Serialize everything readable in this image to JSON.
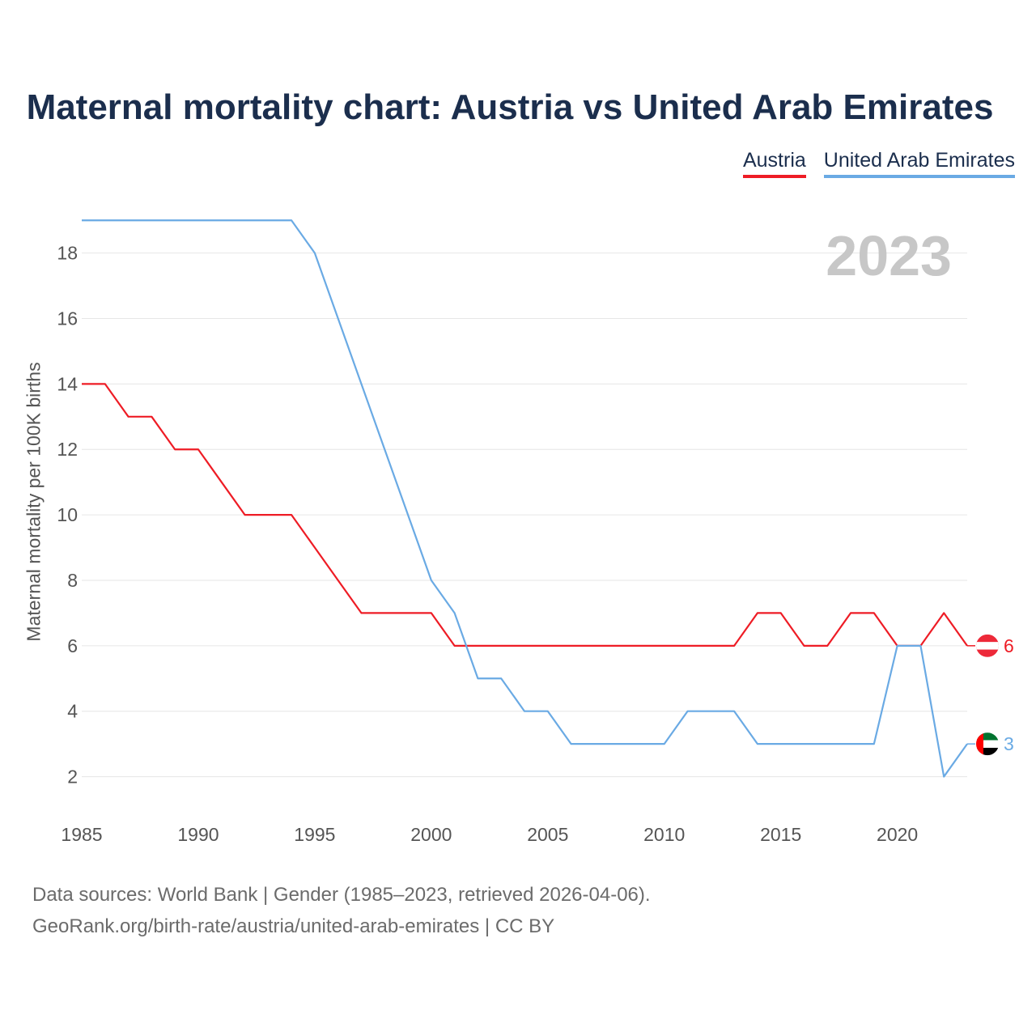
{
  "title": "Maternal mortality chart: Austria vs United Arab Emirates",
  "year_label": "2023",
  "footer": {
    "line1": "Data sources: World Bank | Gender (1985–2023, retrieved 2026-04-06).",
    "line2": "GeoRank.org/birth-rate/austria/united-arab-emirates | CC BY"
  },
  "chart_data": {
    "type": "line",
    "title": "Maternal mortality chart: Austria vs United Arab Emirates",
    "xlabel": "",
    "ylabel": "Maternal mortality per 100K births",
    "xlim": [
      1985,
      2023
    ],
    "ylim": [
      1,
      19.5
    ],
    "x_ticks": [
      "1985",
      "1990",
      "1995",
      "2000",
      "2005",
      "2010",
      "2015",
      "2020"
    ],
    "y_ticks": [
      "2",
      "4",
      "6",
      "8",
      "10",
      "12",
      "14",
      "16",
      "18"
    ],
    "grid": true,
    "legend_position": "top-right",
    "x": [
      1985,
      1986,
      1987,
      1988,
      1989,
      1990,
      1991,
      1992,
      1993,
      1994,
      1995,
      1996,
      1997,
      1998,
      1999,
      2000,
      2001,
      2002,
      2003,
      2004,
      2005,
      2006,
      2007,
      2008,
      2009,
      2010,
      2011,
      2012,
      2013,
      2014,
      2015,
      2016,
      2017,
      2018,
      2019,
      2020,
      2021,
      2022,
      2023
    ],
    "series": [
      {
        "name": "Austria",
        "color": "#ee1c25",
        "end_label": "6",
        "flag": "austria-flag",
        "values": [
          14,
          14,
          13,
          13,
          12,
          12,
          11,
          10,
          10,
          10,
          9,
          8,
          7,
          7,
          7,
          7,
          6,
          6,
          6,
          6,
          6,
          6,
          6,
          6,
          6,
          6,
          6,
          6,
          6,
          7,
          7,
          6,
          6,
          7,
          7,
          6,
          6,
          7,
          6
        ]
      },
      {
        "name": "United Arab Emirates",
        "color": "#6aaae4",
        "end_label": "3",
        "flag": "uae-flag",
        "values": [
          19,
          19,
          19,
          19,
          19,
          19,
          19,
          19,
          19,
          19,
          18,
          16,
          14,
          12,
          10,
          8,
          7,
          5,
          5,
          4,
          4,
          3,
          3,
          3,
          3,
          3,
          4,
          4,
          4,
          3,
          3,
          3,
          3,
          3,
          3,
          6,
          6,
          2,
          3
        ]
      }
    ]
  }
}
